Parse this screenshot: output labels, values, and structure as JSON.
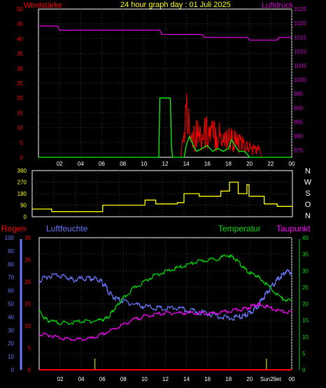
{
  "colors": {
    "background": "#000000",
    "frame": "#ffffff",
    "grid": "#3a3a3a",
    "tick_text": "#ffffff",
    "title": "#ffff00",
    "wind_speed": "#ff0000",
    "wind_gust": "#ff0000",
    "wind_mean": "#00ff00",
    "pressure": "#cc00cc",
    "direction": "#ffff00",
    "rain": "#ff0000",
    "humidity": "#6a78ff",
    "temperature": "#00dd00",
    "dewpoint": "#ff00ff",
    "sun_marker": "#ffff00"
  },
  "chart_data": [
    {
      "type": "line",
      "id": "wind_pressure",
      "title": "24 hour graph day : 01 Juli 2025",
      "left_axis_label": "Windstärke",
      "right_axis_label": "Luftdruck",
      "x_ticks": [
        "02",
        "04",
        "06",
        "08",
        "10",
        "12",
        "14",
        "16",
        "18",
        "20",
        "22",
        "00"
      ],
      "xlim": [
        0,
        24
      ],
      "left_ticks": [
        "0",
        "5",
        "10",
        "15",
        "20",
        "25",
        "30",
        "35",
        "40",
        "45",
        "50"
      ],
      "left_ylim": [
        0,
        50
      ],
      "right_ticks": [
        "975",
        "980",
        "985",
        "990",
        "995",
        "1000",
        "1005",
        "1010",
        "1015",
        "1020",
        "1025"
      ],
      "right_ylim": [
        972.5,
        1025
      ],
      "grid": true,
      "series": [
        {
          "key": "wind_gust",
          "color_key": "wind_gust",
          "style": "spiky",
          "x": [
            0,
            11.4,
            11.5,
            11.6,
            12.0,
            12.5,
            12.6,
            12.7,
            13.0,
            13.5,
            13.8,
            14.0,
            14.3,
            14.6,
            15.0,
            15.5,
            16.0,
            16.5,
            17.0,
            17.5,
            18.0,
            18.5,
            19.0,
            19.5,
            20.0,
            20.5,
            21.0,
            21.1,
            24
          ],
          "y": [
            0,
            0,
            20,
            20,
            20,
            20,
            4,
            0,
            0,
            0,
            12,
            22,
            15,
            13,
            12,
            11,
            13,
            12,
            12,
            11,
            10,
            9,
            7,
            6,
            5,
            4,
            4,
            0,
            0
          ]
        },
        {
          "key": "wind_mean",
          "color_key": "wind_mean",
          "x": [
            0,
            11.4,
            11.5,
            11.6,
            12.0,
            12.5,
            12.6,
            12.7,
            13.0,
            13.8,
            14.0,
            14.3,
            14.8,
            15.0,
            15.5,
            16.0,
            16.5,
            17.0,
            17.5,
            18.0,
            18.3,
            18.6,
            19.0,
            19.5,
            19.8,
            20.0,
            24
          ],
          "y": [
            0,
            0,
            20,
            20,
            20,
            20,
            4,
            0,
            0,
            0,
            4,
            7,
            3,
            2,
            3,
            4,
            2,
            3,
            2,
            3,
            6,
            4,
            2,
            2,
            1,
            0,
            0
          ]
        },
        {
          "key": "pressure",
          "color_key": "pressure",
          "axis": "right",
          "x": [
            0,
            1.8,
            2.0,
            11.5,
            11.7,
            15.5,
            15.7,
            19.8,
            20.0,
            22.6,
            22.8,
            24
          ],
          "y": [
            1019,
            1019,
            1017.5,
            1017.5,
            1016,
            1016,
            1015,
            1015,
            1014,
            1014,
            1015,
            1015
          ]
        }
      ]
    },
    {
      "type": "line",
      "id": "wind_direction",
      "y_ticks": [
        "0",
        "90",
        "180",
        "270",
        "360"
      ],
      "ylim": [
        0,
        360
      ],
      "xlim": [
        0,
        24
      ],
      "compass_labels": [
        "N",
        "W",
        "S",
        "O",
        "N"
      ],
      "grid": true,
      "series": [
        {
          "key": "direction",
          "color_key": "direction",
          "step": true,
          "x": [
            0,
            1.8,
            6.5,
            10.4,
            11.4,
            13.4,
            14.0,
            15.4,
            17.4,
            18.2,
            19.0,
            19.8,
            20.0,
            21.4,
            22.6,
            24
          ],
          "y": [
            60,
            40,
            90,
            130,
            100,
            110,
            180,
            160,
            200,
            270,
            180,
            250,
            160,
            100,
            80,
            80
          ]
        }
      ]
    },
    {
      "type": "line",
      "id": "weather",
      "legend": [
        "Regen",
        "Luftfeuchte",
        "Temperatur",
        "Taupunkt"
      ],
      "x_ticks": [
        "02",
        "04",
        "06",
        "08",
        "10",
        "12",
        "14",
        "16",
        "18",
        "20",
        "Sun29et",
        "00"
      ],
      "xlim": [
        0,
        24
      ],
      "rain_axis": {
        "ticks": [
          "0",
          "10",
          "20",
          "30",
          "40",
          "50",
          "60",
          "70",
          "80",
          "90",
          "100"
        ],
        "ylim": [
          0,
          100
        ]
      },
      "humidity_axis": {
        "ticks": [
          "0",
          "5",
          "10",
          "15",
          "20",
          "25",
          "30"
        ],
        "ylim": [
          0,
          30
        ]
      },
      "right_axis": {
        "ticks": [
          "0",
          "5",
          "10",
          "15",
          "20",
          "25",
          "30",
          "35",
          "40"
        ],
        "ylim": [
          0,
          40
        ]
      },
      "grid": true,
      "sun_markers_x": [
        5.3,
        21.6
      ],
      "series": [
        {
          "key": "humidity",
          "color_key": "humidity",
          "axis": "rain",
          "x": [
            0,
            0.8,
            1.8,
            2.6,
            3.2,
            4.0,
            4.8,
            5.4,
            5.9,
            6.3,
            6.8,
            7.3,
            8.0,
            9.0,
            10.0,
            11.0,
            12.0,
            13.0,
            14.0,
            15.0,
            16.0,
            17.0,
            18.0,
            19.0,
            19.5,
            20.0,
            20.5,
            21.0,
            21.5,
            22.0,
            22.5,
            23.0,
            23.4,
            24
          ],
          "y": [
            68,
            72,
            73,
            71,
            69,
            70,
            70,
            70,
            68,
            64,
            58,
            55,
            53,
            51,
            49,
            48,
            47,
            48,
            46,
            45,
            44,
            42,
            40,
            41,
            42,
            44,
            47,
            52,
            58,
            63,
            68,
            72,
            75,
            75
          ]
        },
        {
          "key": "temperature",
          "color_key": "temperature",
          "axis": "right",
          "x": [
            0,
            0.5,
            1.0,
            2.0,
            3.0,
            4.0,
            5.0,
            6.0,
            6.5,
            7.0,
            7.5,
            8.0,
            9.0,
            10.0,
            11.0,
            12.0,
            13.0,
            14.0,
            15.0,
            16.0,
            17.0,
            18.0,
            18.6,
            19.2,
            19.8,
            20.5,
            21.0,
            22.0,
            23.0,
            24
          ],
          "y": [
            18,
            16,
            15,
            14.5,
            14.5,
            15,
            15,
            15.5,
            16,
            18,
            20,
            22,
            25,
            27,
            29,
            30,
            31,
            32,
            33,
            33.5,
            34,
            35,
            34,
            32,
            30,
            29,
            28,
            25,
            22,
            21
          ]
        },
        {
          "key": "dewpoint",
          "color_key": "dewpoint",
          "axis": "right",
          "x": [
            0,
            1.0,
            2.0,
            3.0,
            4.0,
            5.0,
            6.0,
            7.0,
            8.0,
            9.0,
            10.0,
            11.0,
            12.0,
            13.0,
            14.0,
            15.0,
            16.0,
            17.0,
            18.0,
            19.0,
            19.8,
            20.5,
            21.0,
            22.0,
            23.0,
            24
          ],
          "y": [
            11,
            10.8,
            10,
            9.5,
            9.5,
            9.8,
            11,
            12.5,
            14,
            15.5,
            16.5,
            17,
            17.5,
            17.5,
            17.5,
            17.5,
            17.2,
            17.5,
            18,
            18.5,
            19,
            20,
            20,
            19,
            18,
            17.5
          ]
        },
        {
          "key": "rain",
          "color_key": "rain",
          "axis": "rain",
          "x": [
            0,
            24
          ],
          "y": [
            0,
            0
          ]
        }
      ]
    }
  ]
}
